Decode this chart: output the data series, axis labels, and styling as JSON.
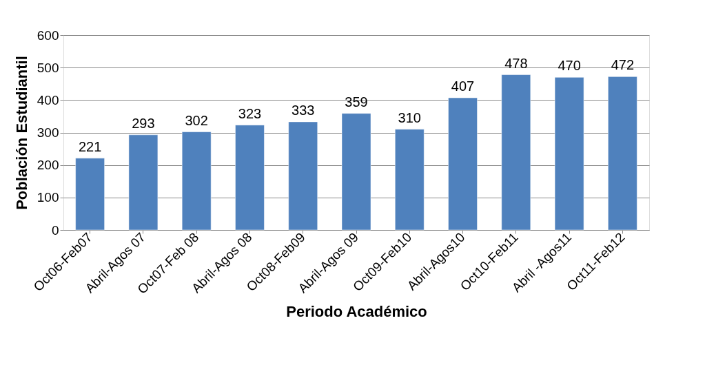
{
  "chart_data": {
    "type": "bar",
    "xlabel": "Periodo Académico",
    "ylabel": "Población Estudiantil",
    "categories": [
      "Oct06-Feb07",
      "Abril-Agos 07",
      "Oct07-Feb 08",
      "Abril-Agos 08",
      "Oct08-Feb09",
      "Abril-Agos 09",
      "Oct09-Feb10",
      "Abril-Agos10",
      "Oct10-Feb11",
      "Abril -Agos11",
      "Oct11-Feb12"
    ],
    "values": [
      221,
      293,
      302,
      323,
      333,
      359,
      310,
      407,
      478,
      470,
      472
    ],
    "color": "#4f81bd",
    "ylim": [
      0,
      600
    ],
    "yticks": [
      0,
      100,
      200,
      300,
      400,
      500,
      600
    ],
    "grid": "y",
    "data_labels": true
  }
}
